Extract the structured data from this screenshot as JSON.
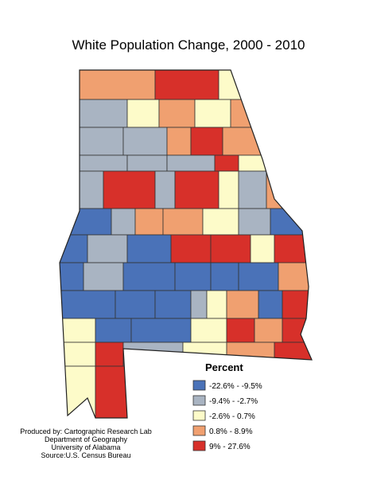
{
  "title": "White Population Change, 2000 - 2010",
  "legend": {
    "title": "Percent",
    "items": [
      {
        "label": "-22.6% - -9.5%",
        "color": "#4a72b8"
      },
      {
        "label": "-9.4% - -2.7%",
        "color": "#a9b4c2"
      },
      {
        "label": "-2.6% - 0.7%",
        "color": "#fdfbc9"
      },
      {
        "label": "0.8% - 8.9%",
        "color": "#f0a070"
      },
      {
        "label": "9% - 27.6%",
        "color": "#d7302a"
      }
    ]
  },
  "credits": [
    "Produced by: Cartographic Research Lab",
    "Department of Geography",
    "University of Alabama",
    "Source:U.S. Census Bureau"
  ]
}
